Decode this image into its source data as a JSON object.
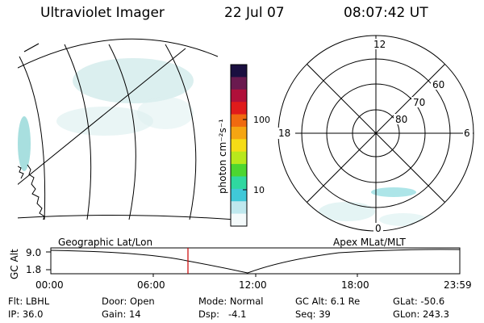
{
  "header": {
    "title": "Ultraviolet Imager",
    "date": "22 Jul 07",
    "time": "08:07:42 UT"
  },
  "colorbar": {
    "label": "photon cm⁻²s⁻¹",
    "ticks": [
      "100",
      "10"
    ],
    "colors": [
      "#1a0f40",
      "#6a1a4f",
      "#b0103a",
      "#e01b1b",
      "#f06a10",
      "#f5a512",
      "#f5dc16",
      "#b8e81c",
      "#4cd630",
      "#2fd8a0",
      "#40c8d8",
      "#bfe8ee",
      "#f4fafb"
    ]
  },
  "geo_panel": {
    "label": "Geographic Lat/Lon"
  },
  "polar_panel": {
    "label": "Apex MLat/MLT",
    "mlt_labels": {
      "top": "12",
      "left": "18",
      "right": "6",
      "bottom": "0"
    },
    "lat_labels": [
      "60",
      "70",
      "80"
    ]
  },
  "alt_plot": {
    "ylabel": "GC Alt",
    "yticks": [
      "9.0",
      "1.8"
    ],
    "xticks": [
      "00:00",
      "06:00",
      "12:00",
      "18:00",
      "23:59"
    ],
    "marker_time": "08:07:42",
    "marker_color": "#cc0000"
  },
  "info": {
    "row1": [
      "Flt: LBHL",
      "Door: Open",
      "Mode: Normal",
      "GC Alt: 6.1 Re",
      "GLat: -50.6"
    ],
    "row2": [
      "IP: 36.0",
      "Gain: 14",
      "Dsp:   -4.1",
      "Seq: 39",
      "GLon: 243.3"
    ]
  }
}
